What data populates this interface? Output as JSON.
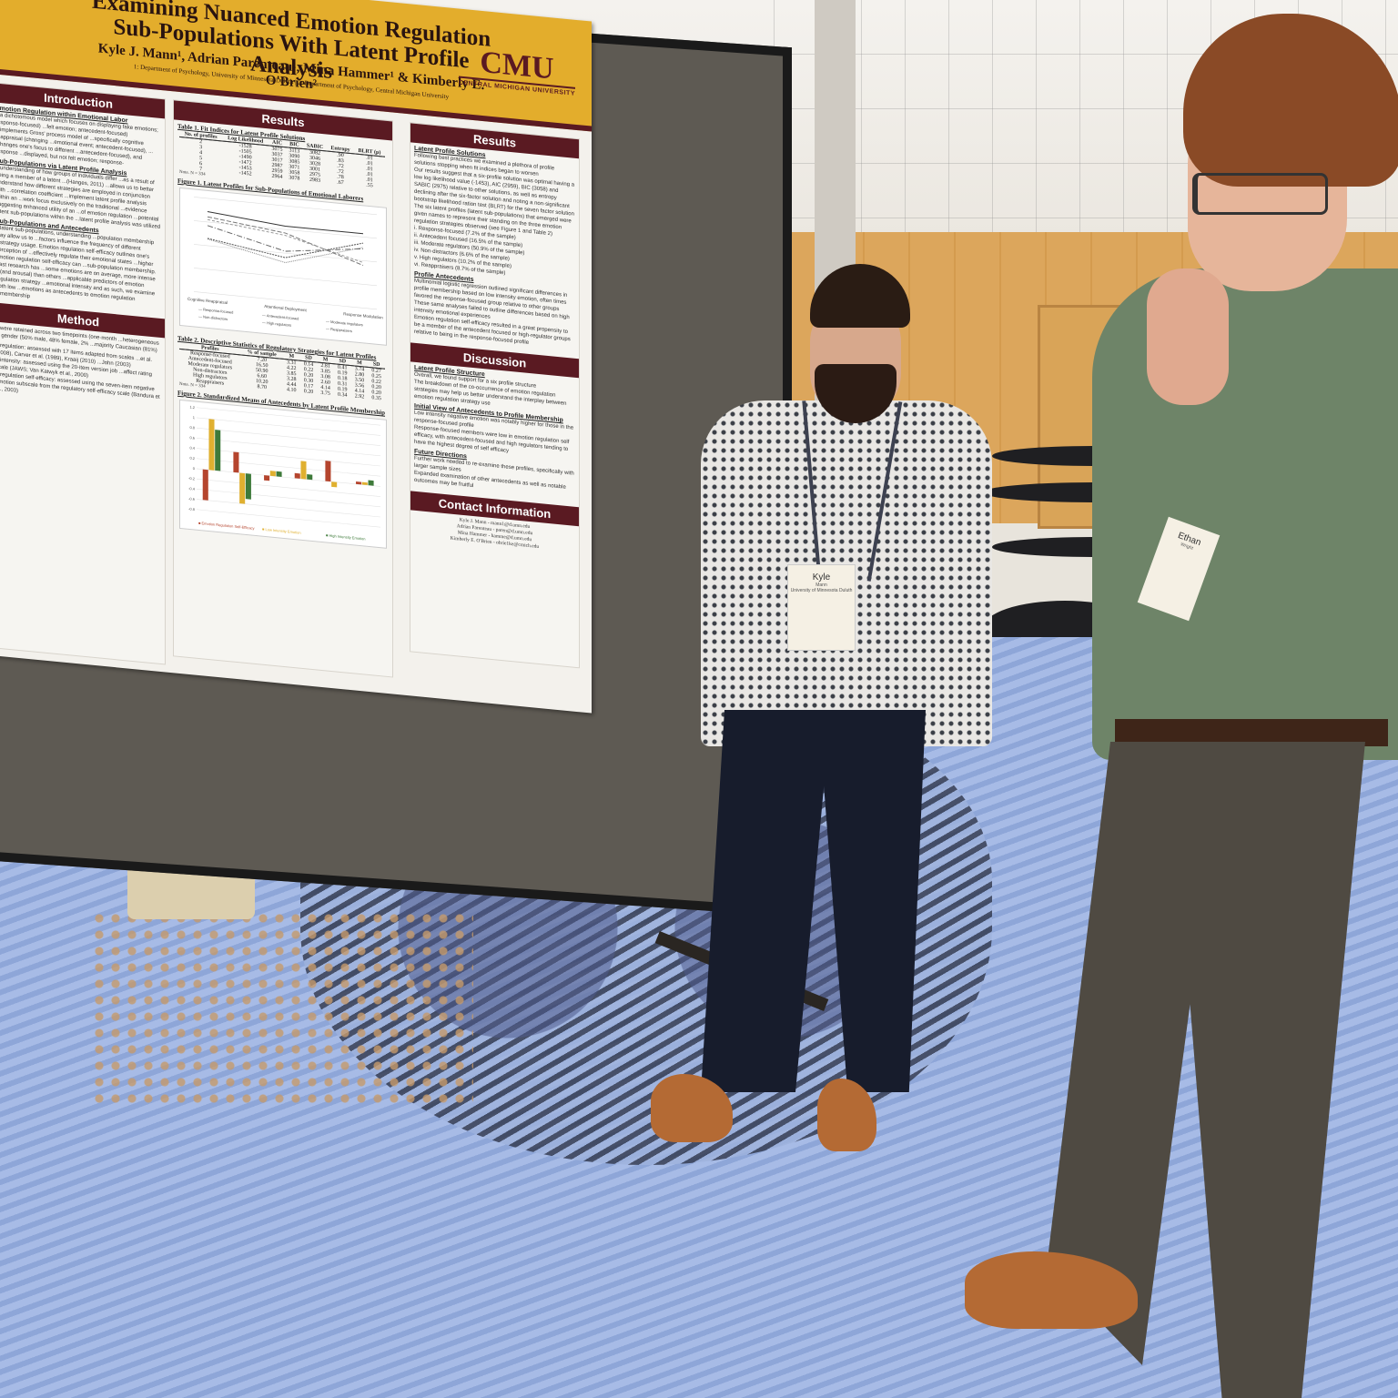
{
  "scene": {
    "description": "Academic poster session in a convention hall; two attendees discuss a research poster",
    "colors": {
      "poster_banner": "#e3ad2c",
      "poster_accent": "#5a1a22",
      "board": "#5e5a53",
      "carpet": "#8ea6d8",
      "wood_wall": "#dca65c"
    }
  },
  "poster": {
    "title_line1": "Examining Nuanced Emotion Regulation",
    "title_line2": "Sub-Populations With Latent Profile Analysis",
    "authors": "Kyle J. Mann¹, Adrian Parenteau¹, Mina Hammer¹ & Kimberly E. O'Brien²",
    "affiliations": "1: Department of Psychology, University of Minnesota-Duluth | 2: Department of Psychology, Central Michigan University",
    "logo": {
      "mark": "CMU",
      "sub": "CENTRAL MICHIGAN UNIVERSITY"
    },
    "introduction": {
      "heading": "Introduction",
      "sections": [
        {
          "subheading": "Emotion Regulation within Emotional Labor",
          "text": "...a dichotomous model which focuses on displaying fake emotions; response-focused) ...felt emotion; antecedent-focused) ...implements Gross' process model of ...specifically cognitive reappraisal (changing ...emotional event; antecedent-focused), ...(changes one's focus to different ...antecedent-focused), and response ...displayed, but not felt emotion; response-"
        },
        {
          "subheading": "Sub-Populations via Latent Profile Analysis",
          "text": "...understanding of how groups of individuals differ ...as a result of being a member of a latent ...(Hanges, 2011) ...allows us to better understand how different strategies are employed in conjunction with ...correlation coefficient ...implement latent profile analysis within an ...work focus exclusively on the traditional ...evidence suggesting enhanced utility of an ...of emotion regulation ...potential latent sub-populations within the ...latent profile analysis was utilized"
        },
        {
          "subheading": "Sub-Populations and Antecedents",
          "text": "...latent sub-populations, understanding ...population membership may allow us to ...factors influence the frequency of different ...strategy usage. Emotion regulation self-efficacy outlines one's perception of ...effectively regulate their emotional states ...higher emotion regulation self-efficacy can ...sub-population membership. Past research has ...some emotions are on average, more intense ...(and arousal) than others ...applicable predictors of emotion regulation strategy ...emotional intensity and as such, we examine both low ...emotions as antecedents to emotion regulation ...membership"
        }
      ]
    },
    "method": {
      "heading": "Method",
      "text": [
        "...were retained across two timepoints (one-month ...heterogeneous in gender (50% male, 48% female, 2% ...majority Caucasian (81%)",
        "...regulation: assessed with 17 items adapted from scales ...et al. (2008), Carver et al. (1989), Kraaij (2010) ...John (2003)",
        "...intensity: assessed using the 20-item version job ...affect rating scale (JAWS; Van Katwyk et al., 2000)",
        "...regulation self-efficacy: assessed using the seven-item negative emotion subscale from the regulatory self-efficacy scale (Bandura et al., 2003)"
      ]
    },
    "results_middle": {
      "heading": "Results",
      "table1": {
        "caption": "Table 1. Fit Indices for Latent Profile Solutions",
        "columns": [
          "No. of profiles",
          "Log Likelihood",
          "AIC",
          "BIC",
          "SABIC",
          "Entropy",
          "BLRT (p)"
        ],
        "rows": [
          [
            "2",
            "-1528",
            "3075",
            "3113",
            "3082",
            ".90",
            ".01"
          ],
          [
            "3",
            "-1505",
            "3037",
            "3090",
            "3046",
            ".83",
            ".01"
          ],
          [
            "4",
            "-1490",
            "3017",
            "3085",
            "3028",
            ".72",
            ".01"
          ],
          [
            "5",
            "-1472",
            "2987",
            "3071",
            "3001",
            ".72",
            ".01"
          ],
          [
            "6",
            "-1453",
            "2959",
            "3058",
            "2975",
            ".78",
            ".01"
          ],
          [
            "7",
            "-1452",
            "2964",
            "3078",
            "2983",
            ".67",
            ".55"
          ]
        ],
        "note": "Note. N = 334"
      },
      "figure1": {
        "caption": "Figure 1. Latent Profiles for Sub-Populations of Emotional Laborers",
        "x_categories": [
          "Cognitive Reappraisal",
          "Attentional Deployment",
          "Response Modulation"
        ],
        "legend": [
          "Response-focused",
          "Antecedent-focused",
          "Moderate regulators",
          "Non-distractors",
          "High regulators",
          "Reappraisers"
        ]
      },
      "table2": {
        "caption": "Table 2. Descriptive Statistics of Regulatory Strategies for Latent Profiles",
        "groups": [
          "Cognitive Reappraisal",
          "Attentional Deployment",
          "Response Modulation"
        ],
        "columns": [
          "Profiles",
          "% of sample",
          "M",
          "SD",
          "M",
          "SD",
          "M",
          "SD"
        ],
        "rows": [
          [
            "Response-focused",
            "7.20",
            "3.31",
            "0.14",
            "2.81",
            "0.41",
            "3.74",
            "0.27"
          ],
          [
            "Antecedent-focused",
            "16.50",
            "4.22",
            "0.22",
            "3.85",
            "0.19",
            "2.80",
            "0.25"
          ],
          [
            "Moderate regulators",
            "50.90",
            "3.85",
            "0.20",
            "3.08",
            "0.18",
            "3.50",
            "0.22"
          ],
          [
            "Non-distractors",
            "6.60",
            "3.28",
            "0.30",
            "2.60",
            "0.31",
            "3.56",
            "0.20"
          ],
          [
            "High regulators",
            "10.20",
            "4.44",
            "0.17",
            "4.14",
            "0.19",
            "4.14",
            "0.20"
          ],
          [
            "Reappraisers",
            "8.70",
            "4.10",
            "0.20",
            "3.75",
            "0.34",
            "2.92",
            "0.35"
          ]
        ],
        "note": "Note. N = 334"
      },
      "figure2": {
        "caption": "Figure 2. Standardized Means of Antecedents by Latent Profile Membership",
        "legend": [
          "Emotion Regulation Self-Efficacy",
          "Low Intensity Emotion",
          "High Intensity Emotion"
        ],
        "legend_colors": [
          "#b5452e",
          "#e0b030",
          "#3e7a3a"
        ]
      }
    },
    "results_right": {
      "heading": "Results",
      "latent_profile_solutions": {
        "subheading": "Latent Profile Solutions",
        "bullets": [
          "Following best practices we examined a plethora of profile solutions stopping when fit indices began to worsen",
          "Our results suggest that a six-profile solution was optimal having a low log likelihood value (-1453), AIC (2959), BIC (3058) and SABIC (2975) relative to other solutions, as well as entropy declining after the six-factor solution and noting a non-significant bootstrap likelihood ration test (BLRT) for the seven factor solution",
          "The six latent profiles (latent sub-populations) that emerged were given names to represent their standing on the three emotion regulation strategies observed (see Figure 1 and Table 2)"
        ],
        "profiles": [
          "i. Response-focused (7.2% of the sample)",
          "ii. Antecedent focused (16.5% of the sample)",
          "iii. Moderate regulators (50.9% of the sample)",
          "iv. Non-distractors (6.6% of the sample)",
          "v. High regulators (10.2% of the sample)",
          "vi. Reappraisers (8.7% of the sample)"
        ]
      },
      "profile_antecedents": {
        "subheading": "Profile Antecedents",
        "bullets": [
          "Multinomial logistic regression outlined significant differences in profile membership based on low intensity emotion, often times favored the response-focused group relative to other groups",
          "These same analyses failed to outline differences based on high intensity emotional experiences",
          "Emotion regulation self-efficacy resulted in a great propensity to be a member of the antecedent focused or high-regulator groups relative to being in the response-focused profile"
        ]
      }
    },
    "discussion": {
      "heading": "Discussion",
      "sections": [
        {
          "subheading": "Latent Profile Structure",
          "bullets": [
            "Overall, we found support for a six profile structure",
            "The breakdown of the co-occurrence of emotion regulation strategies may help us better understand the interplay between emotion regulation strategy use"
          ]
        },
        {
          "subheading": "Initial View of Antecedents to Profile Membership",
          "bullets": [
            "Low intensity negative emotion was notably higher for those in the response-focused profile",
            "Response-focused members were low in emotion regulation self efficacy, with antecedent-focused and high regulators tending to have the highest degree of self efficacy"
          ]
        },
        {
          "subheading": "Future Directions",
          "bullets": [
            "Further work needed to re-examine these profiles, specifically with larger sample sizes",
            "Expanded examination of other antecedents as well as notable outcomes may be fruitful"
          ]
        }
      ]
    },
    "contact": {
      "heading": "Contact Information",
      "lines": [
        "Kyle J. Mann - mann1@d.umn.edu",
        "Adrian Parenteau - paren@d.umn.edu",
        "Mina Hammer - hamme@d.umn.edu",
        "Kimberly E. O'Brien - obrie1ke@cmich.edu"
      ]
    }
  },
  "badges": {
    "presenter": {
      "first": "Kyle",
      "last": "Mann",
      "affiliation": "University of Minnesota Duluth"
    },
    "visitor": {
      "first": "Ethan",
      "last": "Wright"
    }
  },
  "chart_data": [
    {
      "type": "line",
      "title": "Figure 1. Latent Profiles for Sub-Populations of Emotional Laborers",
      "categories": [
        "Cognitive Reappraisal",
        "Attentional Deployment",
        "Response Modulation"
      ],
      "ylim": [
        1,
        5
      ],
      "grid": true,
      "legend_position": "bottom",
      "series": [
        {
          "name": "Response-focused",
          "values": [
            3.31,
            2.81,
            3.74
          ]
        },
        {
          "name": "Antecedent-focused",
          "values": [
            4.22,
            3.85,
            2.8
          ]
        },
        {
          "name": "Moderate regulators",
          "values": [
            3.85,
            3.08,
            3.5
          ]
        },
        {
          "name": "Non-distractors",
          "values": [
            3.28,
            2.6,
            3.56
          ]
        },
        {
          "name": "High regulators",
          "values": [
            4.44,
            4.14,
            4.14
          ]
        },
        {
          "name": "Reappraisers",
          "values": [
            4.1,
            3.75,
            2.92
          ]
        }
      ]
    },
    {
      "type": "bar",
      "title": "Figure 2. Standardized Means of Antecedents by Latent Profile Membership",
      "categories": [
        "Response-focused",
        "Antecedent-focused",
        "Moderate regulators",
        "Non-distractors",
        "High regulators",
        "Reappraisers"
      ],
      "ylim": [
        -0.8,
        1.2
      ],
      "yticks": [
        1.2,
        1,
        0.8,
        0.6,
        0.4,
        0.2,
        0,
        -0.2,
        -0.4,
        -0.6,
        -0.8
      ],
      "grid": true,
      "legend_position": "bottom",
      "series": [
        {
          "name": "Emotion Regulation Self-Efficacy",
          "values": [
            -0.6,
            0.4,
            -0.1,
            0.1,
            0.4,
            0.05
          ]
        },
        {
          "name": "Low Intensity Emotion",
          "values": [
            1.0,
            -0.6,
            0.1,
            0.35,
            -0.1,
            0.05
          ]
        },
        {
          "name": "High Intensity Emotion",
          "values": [
            0.8,
            -0.5,
            0.1,
            0.1,
            0.0,
            0.1
          ]
        }
      ]
    }
  ]
}
